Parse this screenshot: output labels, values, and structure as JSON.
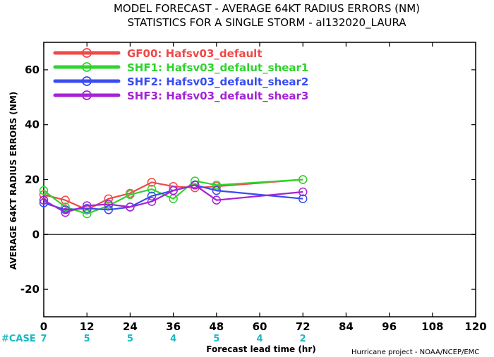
{
  "chart_data": {
    "type": "line",
    "title": "MODEL FORECAST - AVERAGE 64KT RADIUS ERRORS (NM)",
    "subtitle": "STATISTICS FOR A SINGLE STORM - al132020_LAURA",
    "xlabel": "Forecast lead time (hr)",
    "ylabel": "AVERAGE 64KT RADIUS ERRORS (NM)",
    "xlim": [
      0,
      120
    ],
    "ylim": [
      -30,
      70
    ],
    "x_ticks": [
      "0",
      "12",
      "24",
      "36",
      "48",
      "60",
      "72",
      "84",
      "96",
      "108",
      "120"
    ],
    "y_ticks": [
      "-20",
      "0",
      "20",
      "40",
      "60"
    ],
    "grid": false,
    "legend_position": "top-left",
    "zero_line": true,
    "series": [
      {
        "name": "GF00: Hafsv03_default",
        "color": "#f04848",
        "x": [
          0,
          6,
          12,
          18,
          24,
          30,
          36,
          42,
          48,
          72
        ],
        "y": [
          14.5,
          12.5,
          9,
          13,
          15,
          19,
          17.5,
          17,
          17.5,
          20
        ]
      },
      {
        "name": "SHF1: Hafsv03_defalut_shear1",
        "color": "#2ed42e",
        "x": [
          0,
          6,
          12,
          18,
          24,
          30,
          36,
          42,
          48,
          72
        ],
        "y": [
          16,
          10,
          7.5,
          10.5,
          14.5,
          16.5,
          13,
          19.5,
          18,
          20
        ]
      },
      {
        "name": "SHF2: Hafsv03_default_shear2",
        "color": "#3a4cf0",
        "x": [
          0,
          6,
          12,
          18,
          24,
          30,
          36,
          42,
          48,
          72
        ],
        "y": [
          11.5,
          9,
          9.5,
          9,
          10,
          14,
          16,
          18,
          16,
          13
        ]
      },
      {
        "name": "SHF3: Hafsv03_default_shear3",
        "color": "#a424d4",
        "x": [
          0,
          6,
          12,
          18,
          24,
          30,
          36,
          42,
          48,
          72
        ],
        "y": [
          12.5,
          8,
          10.5,
          11,
          10,
          12,
          16,
          18,
          12.5,
          15.5
        ]
      }
    ],
    "case_label": "#CASE",
    "case_counts": [
      {
        "x": 0,
        "label": "7"
      },
      {
        "x": 12,
        "label": "5"
      },
      {
        "x": 24,
        "label": "5"
      },
      {
        "x": 36,
        "label": "4"
      },
      {
        "x": 48,
        "label": "5"
      },
      {
        "x": 60,
        "label": "4"
      },
      {
        "x": 72,
        "label": "2"
      }
    ],
    "case_color": "#1ab8c4",
    "credit": "Hurricane project - NOAA/NCEP/EMC"
  }
}
